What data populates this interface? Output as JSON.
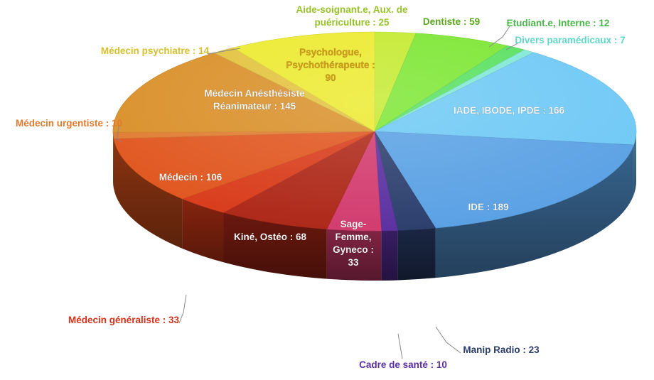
{
  "chart_data": {
    "type": "pie",
    "title": "",
    "slices": [
      {
        "label": "Aide-soignant.e, Aux. de puériculture",
        "value": 25,
        "display": "Aide-soignant.e, Aux. de puériculture : 25",
        "color": "#c4ea2d"
      },
      {
        "label": "Dentiste",
        "value": 59,
        "display": "Dentiste : 59",
        "color": "#7be630"
      },
      {
        "label": "Etudiant.e, Interne",
        "value": 12,
        "display": "Etudiant.e, Interne : 12",
        "color": "#57e05f"
      },
      {
        "label": "Divers paramédicaux",
        "value": 7,
        "display": "Divers paramédicaux : 7",
        "color": "#7fe8d4"
      },
      {
        "label": "IADE, IBODE, IPDE",
        "value": 166,
        "display": "IADE, IBODE, IPDE : 166",
        "color": "#6cc8f5"
      },
      {
        "label": "IDE",
        "value": 189,
        "display": "IDE : 189",
        "color": "#58a0e4"
      },
      {
        "label": "Manip Radio",
        "value": 23,
        "display": "Manip Radio : 23",
        "color": "#2a3d6c"
      },
      {
        "label": "Cadre de santé",
        "value": 10,
        "display": "Cadre de santé : 10",
        "color": "#5a2fa0"
      },
      {
        "label": "Sage-Femme, Gyneco",
        "value": 33,
        "display": "Sage-Femme, Gyneco : 33",
        "color": "#d23a6e"
      },
      {
        "label": "Kiné, Ostéo",
        "value": 68,
        "display": "Kiné, Ostéo : 68",
        "color": "#ad2616"
      },
      {
        "label": "Médecin généraliste",
        "value": 33,
        "display": "Médecin généraliste : 33",
        "color": "#d83a18"
      },
      {
        "label": "Médecin",
        "value": 106,
        "display": "Médecin : 106",
        "color": "#e0541c"
      },
      {
        "label": "Médecin urgentiste",
        "value": 10,
        "display": "Médecin urgentiste : 10",
        "color": "#e07a2e"
      },
      {
        "label": "Médecin Anésthésiste Réanimateur",
        "value": 145,
        "display": "Médecin Anésthésiste Réanimateur : 145",
        "color": "#d98e26"
      },
      {
        "label": "Médecin psychiatre",
        "value": 14,
        "display": "Médecin psychiatre : 14",
        "color": "#e2c23a"
      },
      {
        "label": "Psychologue, Psychothérapeute",
        "value": 90,
        "display": "Psychologue, Psychothérapeute : 90",
        "color": "#ecea2c"
      }
    ],
    "labels": [
      {
        "lines": [
          "Aide-soignant.e, Aux. de",
          "puériculture : 25"
        ],
        "color": "#97c22a",
        "inside": false
      },
      {
        "lines": [
          "Dentiste : 59"
        ],
        "color": "#5aa820",
        "inside": false
      },
      {
        "lines": [
          "Etudiant.e, Interne : 12"
        ],
        "color": "#48b848",
        "inside": false
      },
      {
        "lines": [
          "Divers paramédicaux : 7"
        ],
        "color": "#5fd8c8",
        "inside": false
      },
      {
        "lines": [
          "IADE, IBODE, IPDE : 166"
        ],
        "color": "#ffffff",
        "inside": true
      },
      {
        "lines": [
          "IDE : 189"
        ],
        "color": "#ffffff",
        "inside": true
      },
      {
        "lines": [
          "Manip Radio : 23"
        ],
        "color": "#2a3d6c",
        "inside": false
      },
      {
        "lines": [
          "Cadre de santé : 10"
        ],
        "color": "#5a2fa0",
        "inside": false
      },
      {
        "lines": [
          "Sage-",
          "Femme,",
          "Gyneco :",
          "33"
        ],
        "color": "#ffffff",
        "inside": true
      },
      {
        "lines": [
          "Kiné, Ostéo : 68"
        ],
        "color": "#ffffff",
        "inside": true
      },
      {
        "lines": [
          "Médecin généraliste : 33"
        ],
        "color": "#d8321a",
        "inside": false
      },
      {
        "lines": [
          "Médecin : 106"
        ],
        "color": "#ffffff",
        "inside": true
      },
      {
        "lines": [
          "Médecin urgentiste : 10"
        ],
        "color": "#e07a2e",
        "inside": false
      },
      {
        "lines": [
          "Médecin Anésthésiste",
          "Réanimateur : 145"
        ],
        "color": "#ffffff",
        "inside": true
      },
      {
        "lines": [
          "Médecin psychiatre : 14"
        ],
        "color": "#d6c030",
        "inside": false
      },
      {
        "lines": [
          "Psychologue,",
          "Psychothérapeute :",
          "90"
        ],
        "color": "#d8a018",
        "inside": true
      }
    ],
    "legend": "none",
    "style": "3d-pie"
  }
}
